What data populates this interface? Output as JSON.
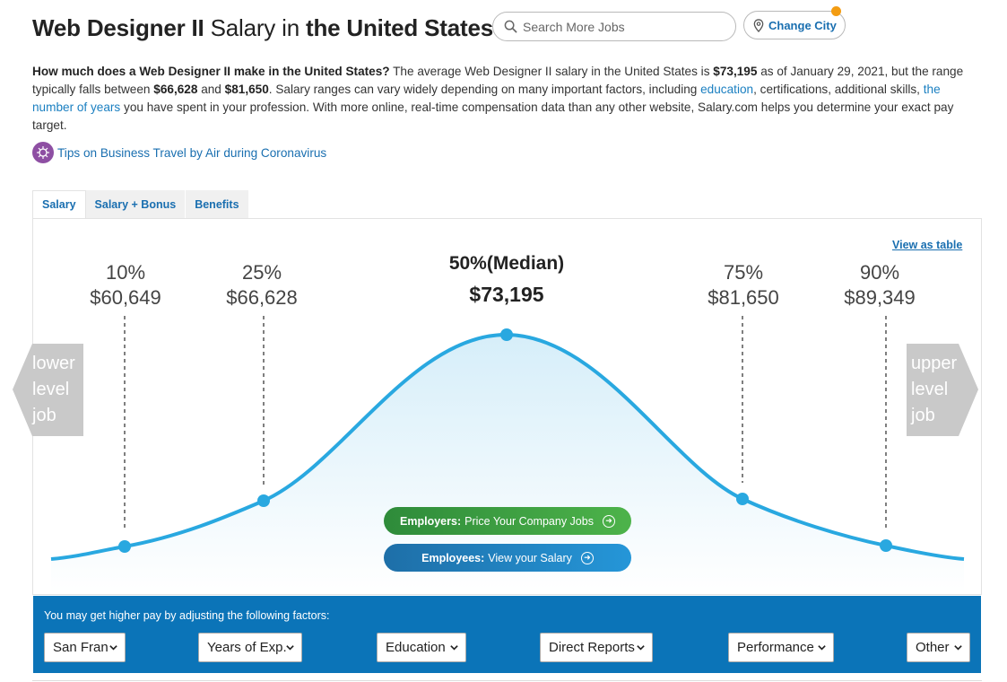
{
  "header": {
    "title_role": "Web Designer II",
    "title_mid": "Salary in",
    "title_loc": "the United States",
    "search_placeholder": "Search More Jobs",
    "change_city_label": "Change City"
  },
  "description": {
    "question": "How much does a Web Designer II make in the United States?",
    "t1": "The average Web Designer II salary in the United States is",
    "average": "$73,195",
    "t2": "as of January 29, 2021, but the range typically falls between",
    "low": "$66,628",
    "t3": "and",
    "high": "$81,650",
    "t4": ". Salary ranges can vary widely depending on many important factors, including",
    "link_education": "education",
    "t5": ", certifications, additional skills,",
    "link_years": "the number of years",
    "t6": "you have spent in your profession. With more online, real-time compensation data than any other website, Salary.com helps you determine your exact pay target."
  },
  "tips_link": "Tips on Business Travel by Air during Coronavirus",
  "tabs": [
    {
      "label": "Salary"
    },
    {
      "label": "Salary + Bonus"
    },
    {
      "label": "Benefits"
    }
  ],
  "view_as_table": "View as table",
  "percentiles": [
    {
      "label": "10%",
      "value": "$60,649"
    },
    {
      "label": "25%",
      "value": "$66,628"
    },
    {
      "label": "50%(Median)",
      "value": "$73,195"
    },
    {
      "label": "75%",
      "value": "$81,650"
    },
    {
      "label": "90%",
      "value": "$89,349"
    }
  ],
  "side_nav": {
    "lower": [
      "lower",
      "level",
      "job"
    ],
    "upper": [
      "upper",
      "level",
      "job"
    ]
  },
  "cta": {
    "employers_bold": "Employers:",
    "employers_text": "Price Your Company Jobs",
    "employees_bold": "Employees:",
    "employees_text": "View your Salary"
  },
  "factors": {
    "label": "You may get higher pay by adjusting the following factors:",
    "selects": [
      "San Fran",
      "Years of Exp.",
      "Education",
      "Direct Reports",
      "Performance",
      "Other"
    ]
  },
  "colors": {
    "curve": "#29a8e0",
    "factor_bg": "#0b74b8",
    "link": "#1a6fb0",
    "accent_dot": "#f39c12"
  }
}
